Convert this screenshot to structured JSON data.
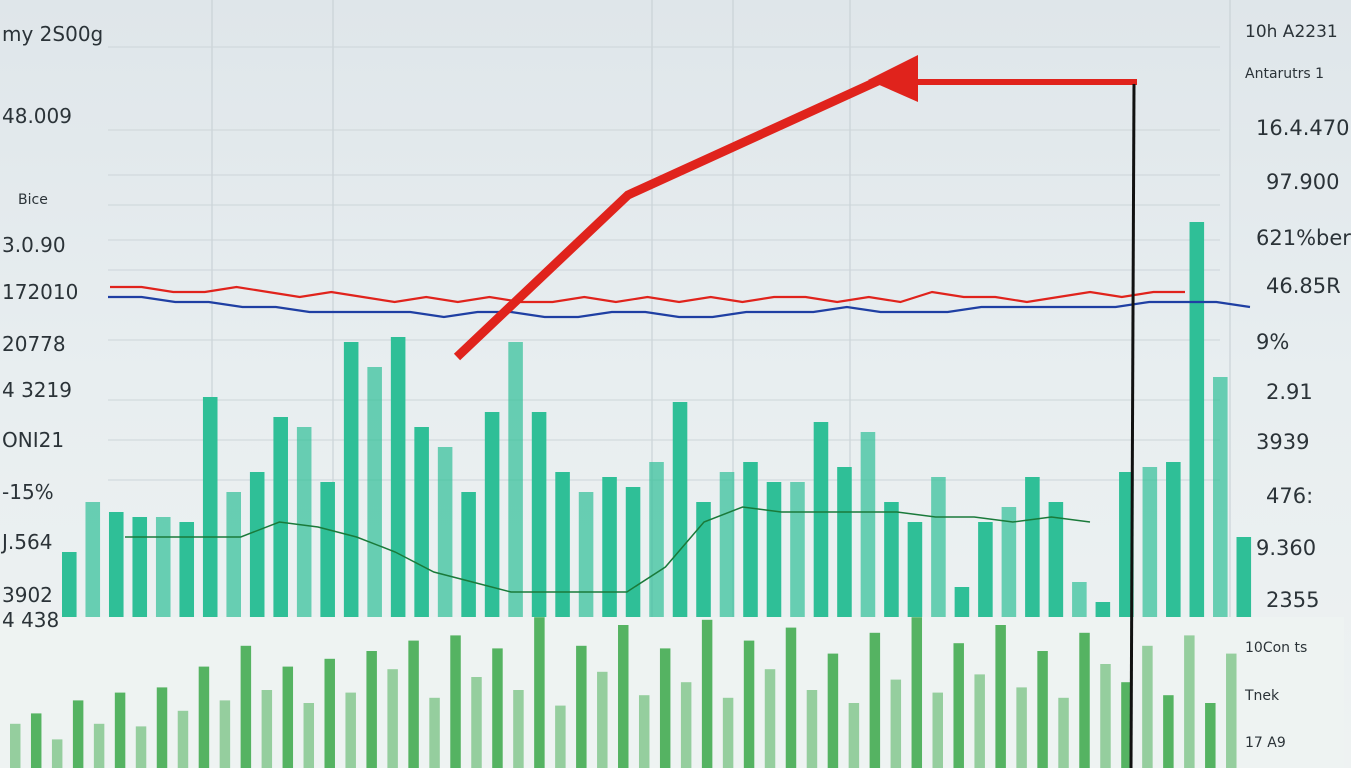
{
  "chart_data": {
    "type": "bar",
    "title": "",
    "left_labels": [
      "my 2S00g",
      "48.009",
      "Bice",
      "3.0.90",
      "172010",
      "20778",
      "4 3219",
      "ONI21",
      "-15%",
      "J.564",
      "3902",
      "4 438"
    ],
    "right_labels": [
      "10h A2231",
      "Antarutrs 1",
      "16.4.470",
      "97.900",
      "621%ber",
      "46.85R",
      "9%",
      "2.91",
      "3939",
      "476:",
      "9.360",
      "2355",
      "10Con ts",
      "Tnek",
      "17 A9"
    ],
    "ylim": [
      0,
      100
    ],
    "upper_bars": [
      13,
      23,
      21,
      20,
      20,
      19,
      44,
      25,
      29,
      40,
      38,
      27,
      55,
      50,
      56,
      38,
      34,
      25,
      41,
      55,
      41,
      29,
      25,
      28,
      26,
      31,
      43,
      23,
      29,
      31,
      27,
      27,
      39,
      30,
      37,
      23,
      19,
      28,
      6,
      19,
      22,
      28,
      23,
      7,
      3,
      29,
      30,
      31,
      79,
      48,
      16
    ],
    "lower_bars": [
      17,
      21,
      11,
      26,
      17,
      29,
      16,
      31,
      22,
      39,
      26,
      47,
      30,
      39,
      25,
      42,
      29,
      45,
      38,
      49,
      27,
      51,
      35,
      46,
      30,
      58,
      24,
      47,
      37,
      55,
      28,
      46,
      33,
      57,
      27,
      49,
      38,
      54,
      30,
      44,
      25,
      52,
      34,
      58,
      29,
      48,
      36,
      55,
      31,
      45,
      27,
      52,
      40,
      33,
      47,
      28,
      51,
      25,
      44
    ],
    "series": [
      {
        "color": "#e0231c",
        "values": [
          66,
          66,
          65,
          65,
          66,
          65,
          64,
          65,
          64,
          63,
          64,
          63,
          64,
          63,
          63,
          64,
          63,
          64,
          63,
          64,
          63,
          64,
          64,
          63,
          64,
          63,
          65,
          64,
          64,
          63,
          64,
          65,
          64,
          65,
          65
        ]
      },
      {
        "color": "#1f3fa3",
        "values": [
          64,
          64,
          63,
          63,
          62,
          62,
          61,
          61,
          61,
          61,
          60,
          61,
          61,
          60,
          60,
          61,
          61,
          60,
          60,
          61,
          61,
          61,
          62,
          61,
          61,
          61,
          62,
          62,
          62,
          62,
          62,
          63,
          63,
          63,
          62
        ]
      },
      {
        "color": "#1a7a3a",
        "values": [
          16,
          16,
          16,
          16,
          19,
          18,
          16,
          13,
          9,
          7,
          5,
          5,
          5,
          5,
          10,
          19,
          22,
          21,
          21,
          21,
          21,
          20,
          20,
          19,
          20,
          19
        ]
      }
    ],
    "colors": {
      "upper": "#2fbf97",
      "lower": "#4caf5a",
      "arrow": "#e0231c",
      "marker": "#111111"
    }
  }
}
